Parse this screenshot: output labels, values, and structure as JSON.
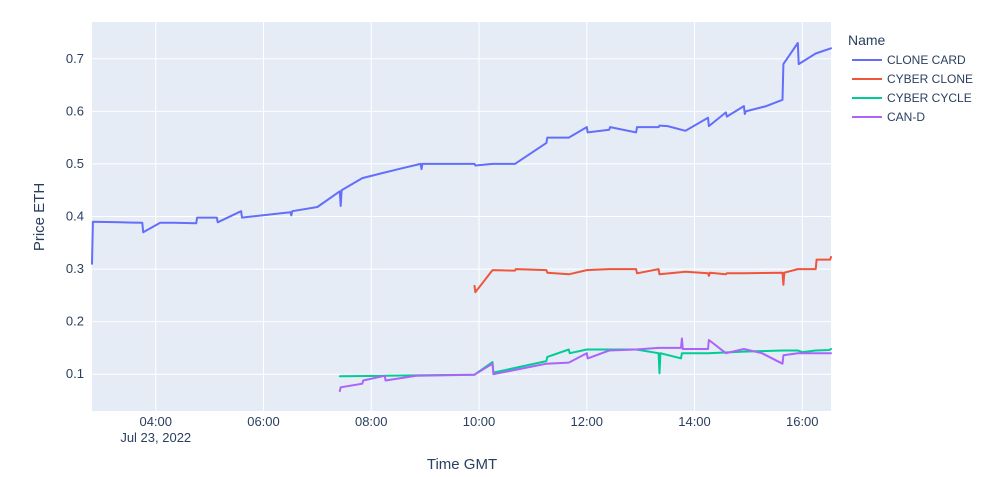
{
  "chart_data": {
    "type": "line",
    "xlabel": "Time GMT",
    "ylabel": "Price ETH",
    "x_type": "datetime",
    "xlim": [
      "2022-07-23 02:49",
      "2022-07-23 16:32"
    ],
    "ylim": [
      0.03,
      0.77
    ],
    "x_tick_labels": [
      {
        "at": "2022-07-23 04:00",
        "label": "04:00",
        "sublabel": "Jul 23, 2022"
      },
      {
        "at": "2022-07-23 06:00",
        "label": "06:00"
      },
      {
        "at": "2022-07-23 08:00",
        "label": "08:00"
      },
      {
        "at": "2022-07-23 10:00",
        "label": "10:00"
      },
      {
        "at": "2022-07-23 12:00",
        "label": "12:00"
      },
      {
        "at": "2022-07-23 14:00",
        "label": "14:00"
      },
      {
        "at": "2022-07-23 16:00",
        "label": "16:00"
      }
    ],
    "y_ticks": [
      0.1,
      0.2,
      0.3,
      0.4,
      0.5,
      0.6,
      0.7
    ],
    "y_tick_labels": [
      "0.1",
      "0.2",
      "0.3",
      "0.4",
      "0.5",
      "0.6",
      "0.7"
    ],
    "grid": true,
    "legend": {
      "title": "Name",
      "position": "right"
    },
    "series": [
      {
        "name": "CLONE CARD",
        "color": "#636efa",
        "points": [
          [
            "2022-07-23 02:49",
            0.31
          ],
          [
            "2022-07-23 02:50",
            0.39
          ],
          [
            "2022-07-23 03:20",
            0.389
          ],
          [
            "2022-07-23 03:45",
            0.388
          ],
          [
            "2022-07-23 03:46",
            0.37
          ],
          [
            "2022-07-23 04:05",
            0.388
          ],
          [
            "2022-07-23 04:20",
            0.388
          ],
          [
            "2022-07-23 04:45",
            0.387
          ],
          [
            "2022-07-23 04:46",
            0.398
          ],
          [
            "2022-07-23 05:08",
            0.398
          ],
          [
            "2022-07-23 05:09",
            0.389
          ],
          [
            "2022-07-23 05:35",
            0.41
          ],
          [
            "2022-07-23 05:36",
            0.398
          ],
          [
            "2022-07-23 06:30",
            0.408
          ],
          [
            "2022-07-23 06:31",
            0.402
          ],
          [
            "2022-07-23 06:32",
            0.41
          ],
          [
            "2022-07-23 07:00",
            0.418
          ],
          [
            "2022-07-23 07:25",
            0.448
          ],
          [
            "2022-07-23 07:26",
            0.42
          ],
          [
            "2022-07-23 07:27",
            0.45
          ],
          [
            "2022-07-23 07:50",
            0.473
          ],
          [
            "2022-07-23 08:30",
            0.49
          ],
          [
            "2022-07-23 08:55",
            0.5
          ],
          [
            "2022-07-23 08:56",
            0.49
          ],
          [
            "2022-07-23 08:57",
            0.5
          ],
          [
            "2022-07-23 09:55",
            0.5
          ],
          [
            "2022-07-23 09:56",
            0.497
          ],
          [
            "2022-07-23 10:15",
            0.5
          ],
          [
            "2022-07-23 10:40",
            0.5
          ],
          [
            "2022-07-23 11:15",
            0.54
          ],
          [
            "2022-07-23 11:16",
            0.55
          ],
          [
            "2022-07-23 11:40",
            0.55
          ],
          [
            "2022-07-23 12:00",
            0.57
          ],
          [
            "2022-07-23 12:01",
            0.56
          ],
          [
            "2022-07-23 12:25",
            0.565
          ],
          [
            "2022-07-23 12:26",
            0.57
          ],
          [
            "2022-07-23 12:55",
            0.56
          ],
          [
            "2022-07-23 12:56",
            0.57
          ],
          [
            "2022-07-23 13:20",
            0.57
          ],
          [
            "2022-07-23 13:21",
            0.573
          ],
          [
            "2022-07-23 13:30",
            0.572
          ],
          [
            "2022-07-23 13:50",
            0.563
          ],
          [
            "2022-07-23 14:15",
            0.588
          ],
          [
            "2022-07-23 14:16",
            0.572
          ],
          [
            "2022-07-23 14:35",
            0.598
          ],
          [
            "2022-07-23 14:36",
            0.59
          ],
          [
            "2022-07-23 14:55",
            0.61
          ],
          [
            "2022-07-23 14:56",
            0.595
          ],
          [
            "2022-07-23 14:57",
            0.6
          ],
          [
            "2022-07-23 15:20",
            0.61
          ],
          [
            "2022-07-23 15:38",
            0.622
          ],
          [
            "2022-07-23 15:39",
            0.69
          ],
          [
            "2022-07-23 15:55",
            0.73
          ],
          [
            "2022-07-23 15:56",
            0.69
          ],
          [
            "2022-07-23 16:15",
            0.71
          ],
          [
            "2022-07-23 16:32",
            0.72
          ]
        ]
      },
      {
        "name": "CYBER CLONE",
        "color": "#ef553b",
        "points": [
          [
            "2022-07-23 09:55",
            0.268
          ],
          [
            "2022-07-23 09:56",
            0.256
          ],
          [
            "2022-07-23 10:15",
            0.298
          ],
          [
            "2022-07-23 10:40",
            0.297
          ],
          [
            "2022-07-23 10:41",
            0.3
          ],
          [
            "2022-07-23 11:15",
            0.298
          ],
          [
            "2022-07-23 11:16",
            0.293
          ],
          [
            "2022-07-23 11:40",
            0.29
          ],
          [
            "2022-07-23 12:00",
            0.298
          ],
          [
            "2022-07-23 12:25",
            0.3
          ],
          [
            "2022-07-23 12:55",
            0.3
          ],
          [
            "2022-07-23 12:56",
            0.292
          ],
          [
            "2022-07-23 13:20",
            0.3
          ],
          [
            "2022-07-23 13:21",
            0.29
          ],
          [
            "2022-07-23 13:50",
            0.295
          ],
          [
            "2022-07-23 14:15",
            0.292
          ],
          [
            "2022-07-23 14:16",
            0.287
          ],
          [
            "2022-07-23 14:17",
            0.293
          ],
          [
            "2022-07-23 14:35",
            0.29
          ],
          [
            "2022-07-23 14:36",
            0.292
          ],
          [
            "2022-07-23 14:55",
            0.292
          ],
          [
            "2022-07-23 15:38",
            0.293
          ],
          [
            "2022-07-23 15:39",
            0.27
          ],
          [
            "2022-07-23 15:40",
            0.293
          ],
          [
            "2022-07-23 15:55",
            0.3
          ],
          [
            "2022-07-23 16:15",
            0.3
          ],
          [
            "2022-07-23 16:16",
            0.318
          ],
          [
            "2022-07-23 16:31",
            0.318
          ],
          [
            "2022-07-23 16:32",
            0.323
          ]
        ]
      },
      {
        "name": "CYBER CYCLE",
        "color": "#00cc96",
        "points": [
          [
            "2022-07-23 07:25",
            0.096
          ],
          [
            "2022-07-23 08:15",
            0.097
          ],
          [
            "2022-07-23 08:55",
            0.098
          ],
          [
            "2022-07-23 09:55",
            0.099
          ],
          [
            "2022-07-23 10:15",
            0.123
          ],
          [
            "2022-07-23 10:16",
            0.103
          ],
          [
            "2022-07-23 11:15",
            0.125
          ],
          [
            "2022-07-23 11:16",
            0.133
          ],
          [
            "2022-07-23 11:40",
            0.147
          ],
          [
            "2022-07-23 11:41",
            0.14
          ],
          [
            "2022-07-23 12:00",
            0.147
          ],
          [
            "2022-07-23 12:55",
            0.147
          ],
          [
            "2022-07-23 13:20",
            0.14
          ],
          [
            "2022-07-23 13:21",
            0.102
          ],
          [
            "2022-07-23 13:22",
            0.14
          ],
          [
            "2022-07-23 13:45",
            0.13
          ],
          [
            "2022-07-23 13:46",
            0.14
          ],
          [
            "2022-07-23 14:15",
            0.14
          ],
          [
            "2022-07-23 14:55",
            0.143
          ],
          [
            "2022-07-23 15:38",
            0.145
          ],
          [
            "2022-07-23 15:55",
            0.145
          ],
          [
            "2022-07-23 16:00",
            0.142
          ],
          [
            "2022-07-23 16:15",
            0.145
          ],
          [
            "2022-07-23 16:30",
            0.146
          ],
          [
            "2022-07-23 16:32",
            0.148
          ]
        ]
      },
      {
        "name": "CAN-D",
        "color": "#ab63fa",
        "points": [
          [
            "2022-07-23 07:25",
            0.068
          ],
          [
            "2022-07-23 07:26",
            0.075
          ],
          [
            "2022-07-23 07:50",
            0.082
          ],
          [
            "2022-07-23 07:51",
            0.088
          ],
          [
            "2022-07-23 08:15",
            0.097
          ],
          [
            "2022-07-23 08:16",
            0.088
          ],
          [
            "2022-07-23 08:50",
            0.097
          ],
          [
            "2022-07-23 09:55",
            0.099
          ],
          [
            "2022-07-23 10:15",
            0.12
          ],
          [
            "2022-07-23 10:16",
            0.1
          ],
          [
            "2022-07-23 11:15",
            0.12
          ],
          [
            "2022-07-23 11:40",
            0.122
          ],
          [
            "2022-07-23 12:00",
            0.14
          ],
          [
            "2022-07-23 12:01",
            0.13
          ],
          [
            "2022-07-23 12:25",
            0.145
          ],
          [
            "2022-07-23 12:55",
            0.147
          ],
          [
            "2022-07-23 13:20",
            0.15
          ],
          [
            "2022-07-23 13:45",
            0.15
          ],
          [
            "2022-07-23 13:46",
            0.168
          ],
          [
            "2022-07-23 13:47",
            0.148
          ],
          [
            "2022-07-23 14:15",
            0.148
          ],
          [
            "2022-07-23 14:16",
            0.165
          ],
          [
            "2022-07-23 14:35",
            0.14
          ],
          [
            "2022-07-23 14:55",
            0.148
          ],
          [
            "2022-07-23 15:15",
            0.14
          ],
          [
            "2022-07-23 15:38",
            0.12
          ],
          [
            "2022-07-23 15:39",
            0.136
          ],
          [
            "2022-07-23 15:55",
            0.14
          ],
          [
            "2022-07-23 16:32",
            0.14
          ]
        ]
      }
    ]
  }
}
